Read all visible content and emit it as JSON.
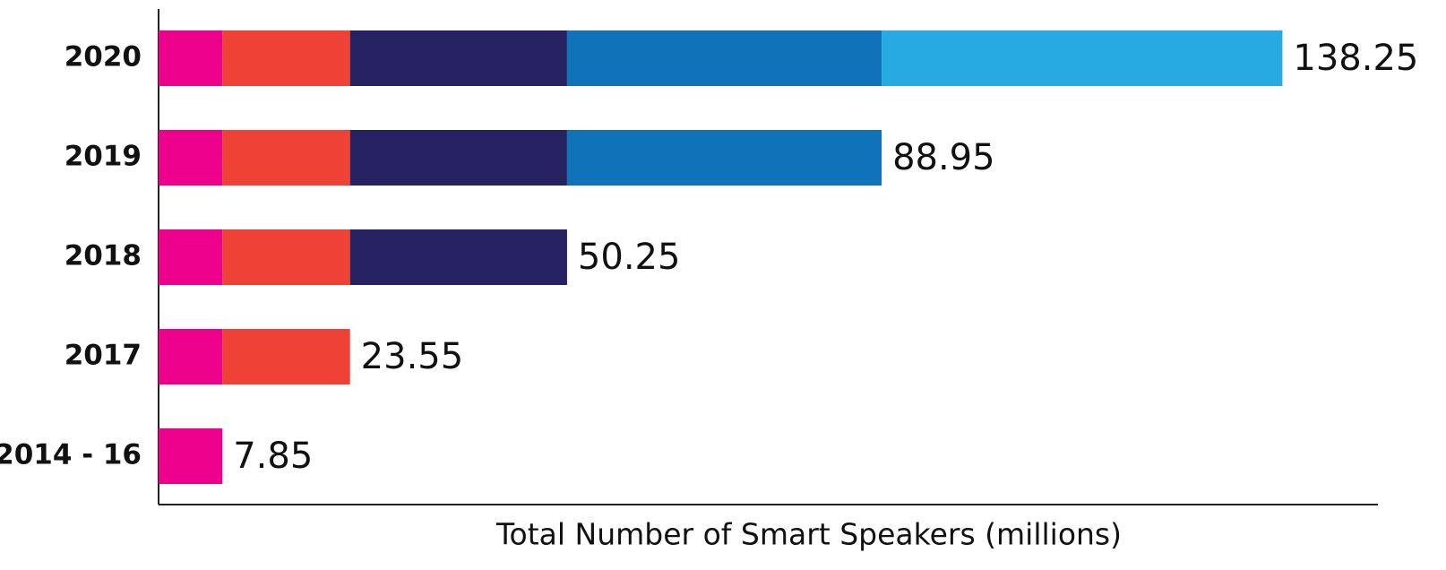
{
  "chart_data": {
    "type": "stacked-bar-horizontal",
    "x_label": "Total Number of Smart Speakers (millions)",
    "categories": [
      "2020",
      "2019",
      "2018",
      "2017",
      "2014 - 16"
    ],
    "series": [
      {
        "color": "#ec008c",
        "values": [
          7.85,
          7.85,
          7.85,
          7.85,
          7.85
        ]
      },
      {
        "color": "#ef4136",
        "values": [
          15.7,
          15.7,
          15.7,
          15.7,
          null
        ]
      },
      {
        "color": "#262262",
        "values": [
          26.7,
          26.7,
          26.7,
          null,
          null
        ]
      },
      {
        "color": "#1073b9",
        "values": [
          38.7,
          38.7,
          null,
          null,
          null
        ]
      },
      {
        "color": "#27aae1",
        "values": [
          49.3,
          null,
          null,
          null,
          null
        ]
      }
    ],
    "totals": [
      138.25,
      88.95,
      50.25,
      23.55,
      7.85
    ],
    "xlim": [
      0,
      150
    ]
  }
}
